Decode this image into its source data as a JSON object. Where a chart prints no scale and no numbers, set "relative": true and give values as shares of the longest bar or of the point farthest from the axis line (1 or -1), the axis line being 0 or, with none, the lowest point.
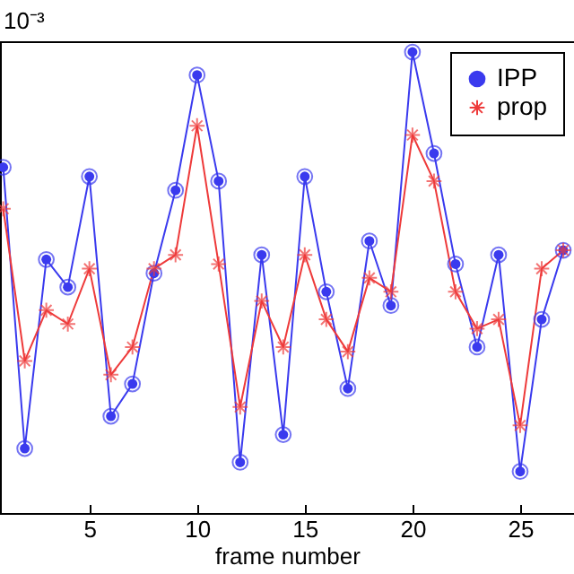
{
  "chart_data": {
    "type": "line",
    "xlabel": "frame number",
    "annotations": [
      "10⁻³"
    ],
    "relative": true,
    "legend": "top right",
    "grid": false,
    "line_style": "solid",
    "x": [
      1,
      2,
      3,
      4,
      5,
      6,
      7,
      8,
      9,
      10,
      11,
      12,
      13,
      14,
      15,
      16,
      17,
      18,
      19,
      20,
      21,
      22,
      23,
      24,
      25,
      26,
      27
    ],
    "xlim": [
      0.85,
      27.5
    ],
    "xticks": [
      5,
      10,
      15,
      20,
      25
    ],
    "series": [
      {
        "name": "IPP",
        "color": "#3a3aee",
        "marker": "circle",
        "values": [
          0.75,
          0.14,
          0.55,
          0.49,
          0.73,
          0.21,
          0.28,
          0.52,
          0.7,
          0.95,
          0.72,
          0.11,
          0.56,
          0.17,
          0.73,
          0.48,
          0.27,
          0.59,
          0.45,
          1.0,
          0.78,
          0.54,
          0.36,
          0.56,
          0.09,
          0.42,
          0.57
        ]
      },
      {
        "name": "prop",
        "color": "#ee3a3a",
        "marker": "cross",
        "values": [
          0.66,
          0.33,
          0.44,
          0.41,
          0.53,
          0.3,
          0.36,
          0.53,
          0.56,
          0.84,
          0.54,
          0.23,
          0.46,
          0.36,
          0.56,
          0.42,
          0.35,
          0.51,
          0.48,
          0.82,
          0.72,
          0.48,
          0.4,
          0.42,
          0.19,
          0.53,
          0.57
        ]
      }
    ]
  }
}
